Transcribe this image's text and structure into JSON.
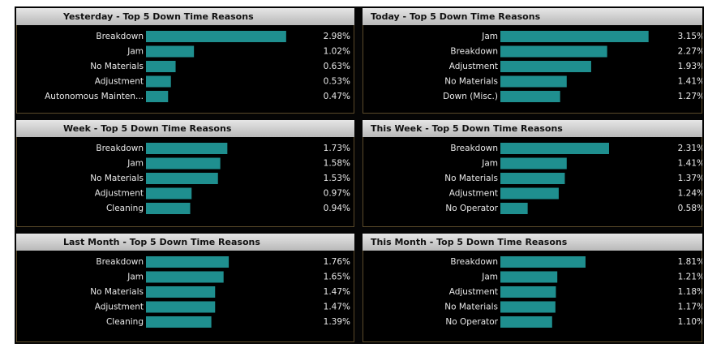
{
  "chart_data": [
    {
      "type": "bar",
      "title": "Yesterday - Top 5 Down Time Reasons",
      "color": "#1f8f8f",
      "categories": [
        "Breakdown",
        "Jam",
        "No Materials",
        "Adjustment",
        "Autonomous Mainten..."
      ],
      "values": [
        2.98,
        1.02,
        0.63,
        0.53,
        0.47
      ],
      "value_labels": [
        "2.98%",
        "1.02%",
        "0.63%",
        "0.53%",
        "0.47%"
      ]
    },
    {
      "type": "bar",
      "title": "Today - Top 5 Down Time Reasons",
      "color": "#1f8f8f",
      "categories": [
        "Jam",
        "Breakdown",
        "Adjustment",
        "No Materials",
        "Down (Misc.)"
      ],
      "values": [
        3.15,
        2.27,
        1.93,
        1.41,
        1.27
      ],
      "value_labels": [
        "3.15%",
        "2.27%",
        "1.93%",
        "1.41%",
        "1.27%"
      ]
    },
    {
      "type": "bar",
      "title": "Week - Top 5 Down Time Reasons",
      "color": "#1f8f8f",
      "categories": [
        "Breakdown",
        "Jam",
        "No Materials",
        "Adjustment",
        "Cleaning"
      ],
      "values": [
        1.73,
        1.58,
        1.53,
        0.97,
        0.94
      ],
      "value_labels": [
        "1.73%",
        "1.58%",
        "1.53%",
        "0.97%",
        "0.94%"
      ]
    },
    {
      "type": "bar",
      "title": "This Week - Top 5 Down Time Reasons",
      "color": "#1f8f8f",
      "categories": [
        "Breakdown",
        "Jam",
        "No Materials",
        "Adjustment",
        "No Operator"
      ],
      "values": [
        2.31,
        1.41,
        1.37,
        1.24,
        0.58
      ],
      "value_labels": [
        "2.31%",
        "1.41%",
        "1.37%",
        "1.24%",
        "0.58%"
      ]
    },
    {
      "type": "bar",
      "title": "Last Month - Top 5 Down Time Reasons",
      "color": "#1f8f8f",
      "categories": [
        "Breakdown",
        "Jam",
        "No Materials",
        "Adjustment",
        "Cleaning"
      ],
      "values": [
        1.76,
        1.65,
        1.47,
        1.47,
        1.39
      ],
      "value_labels": [
        "1.76%",
        "1.65%",
        "1.47%",
        "1.47%",
        "1.39%"
      ]
    },
    {
      "type": "bar",
      "title": "This Month - Top 5 Down Time Reasons",
      "color": "#1f8f8f",
      "categories": [
        "Breakdown",
        "Jam",
        "Adjustment",
        "No Materials",
        "No Operator"
      ],
      "values": [
        1.81,
        1.21,
        1.18,
        1.17,
        1.1
      ],
      "value_labels": [
        "1.81%",
        "1.21%",
        "1.18%",
        "1.17%",
        "1.10%"
      ]
    }
  ]
}
